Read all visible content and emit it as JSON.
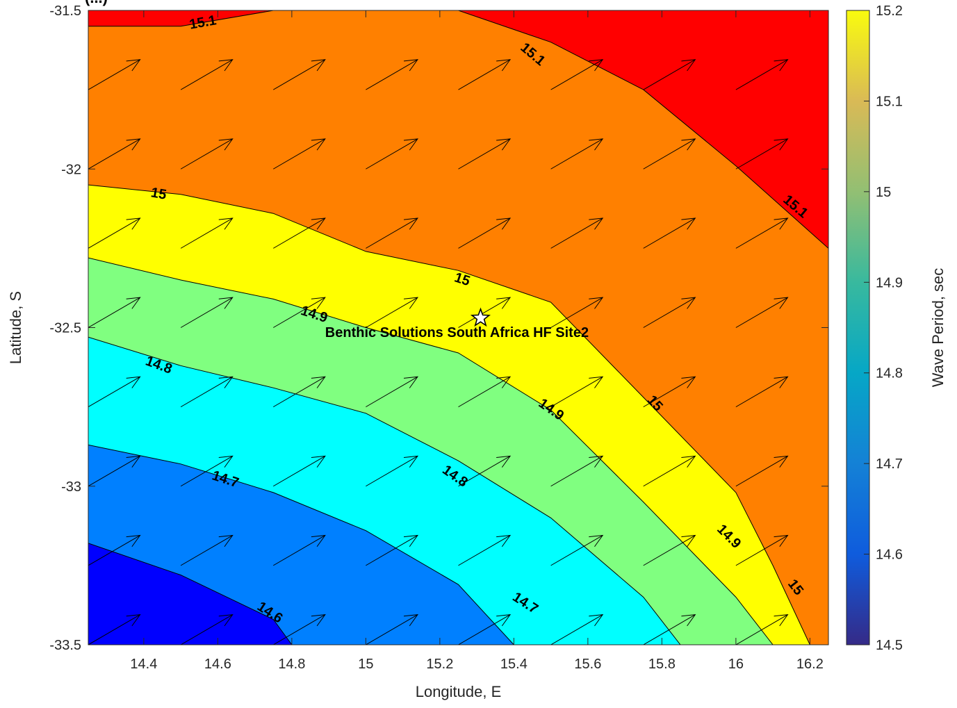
{
  "chart_data": {
    "type": "filled-contour",
    "title_fragment": "(...)",
    "xlabel": "Longitude, E",
    "ylabel": "Latitude, S",
    "colorbar_label": "Wave Period, sec",
    "xlim": [
      14.25,
      16.25
    ],
    "ylim": [
      -33.5,
      -31.5
    ],
    "x_ticks": [
      14.4,
      14.6,
      14.8,
      15,
      15.2,
      15.4,
      15.6,
      15.8,
      16,
      16.2
    ],
    "x_tick_labels": [
      "14.4",
      "14.6",
      "14.8",
      "15",
      "15.2",
      "15.4",
      "15.6",
      "15.8",
      "16",
      "16.2"
    ],
    "y_ticks": [
      -31.5,
      -32,
      -32.5,
      -33,
      -33.5
    ],
    "y_tick_labels": [
      "-31.5",
      "-32",
      "-32.5",
      "-33",
      "-33.5"
    ],
    "colorbar_range": [
      14.5,
      15.2
    ],
    "colorbar_ticks": [
      14.5,
      14.6,
      14.7,
      14.8,
      14.9,
      15,
      15.1,
      15.2
    ],
    "colorbar_tick_labels": [
      "14.5",
      "14.6",
      "14.7",
      "14.8",
      "14.9",
      "15",
      "15.1",
      "15.2"
    ],
    "contour_levels": [
      14.6,
      14.7,
      14.8,
      14.9,
      15.0,
      15.1
    ],
    "bands": [
      {
        "range": [
          14.5,
          14.6
        ],
        "color": "#0000FF"
      },
      {
        "range": [
          14.6,
          14.7
        ],
        "color": "#0080FF"
      },
      {
        "range": [
          14.7,
          14.8
        ],
        "color": "#00FFFF"
      },
      {
        "range": [
          14.8,
          14.9
        ],
        "color": "#80FF80"
      },
      {
        "range": [
          14.9,
          15.0
        ],
        "color": "#FFFF00"
      },
      {
        "range": [
          15.0,
          15.1
        ],
        "color": "#FF8000"
      },
      {
        "range": [
          15.1,
          15.2
        ],
        "color": "#FF0000"
      }
    ],
    "contour_lines": [
      {
        "level": 14.6,
        "points": [
          [
            14.25,
            -33.18
          ],
          [
            14.5,
            -33.28
          ],
          [
            14.75,
            -33.42
          ],
          [
            14.8,
            -33.5
          ]
        ]
      },
      {
        "level": 14.7,
        "points": [
          [
            14.25,
            -32.87
          ],
          [
            14.5,
            -32.93
          ],
          [
            14.75,
            -33.02
          ],
          [
            15.0,
            -33.14
          ],
          [
            15.25,
            -33.31
          ],
          [
            15.4,
            -33.5
          ]
        ]
      },
      {
        "level": 14.8,
        "points": [
          [
            14.25,
            -32.53
          ],
          [
            14.5,
            -32.62
          ],
          [
            14.75,
            -32.69
          ],
          [
            15.0,
            -32.77
          ],
          [
            15.25,
            -32.92
          ],
          [
            15.5,
            -33.1
          ],
          [
            15.75,
            -33.35
          ],
          [
            15.85,
            -33.5
          ]
        ]
      },
      {
        "level": 14.9,
        "points": [
          [
            14.25,
            -32.28
          ],
          [
            14.5,
            -32.35
          ],
          [
            14.75,
            -32.41
          ],
          [
            15.0,
            -32.5
          ],
          [
            15.25,
            -32.58
          ],
          [
            15.5,
            -32.76
          ],
          [
            15.75,
            -33.05
          ],
          [
            16.0,
            -33.35
          ],
          [
            16.1,
            -33.5
          ]
        ]
      },
      {
        "level": 15.0,
        "points": [
          [
            14.25,
            -32.05
          ],
          [
            14.5,
            -32.08
          ],
          [
            14.75,
            -32.14
          ],
          [
            15.0,
            -32.26
          ],
          [
            15.25,
            -32.32
          ],
          [
            15.5,
            -32.42
          ],
          [
            15.75,
            -32.72
          ],
          [
            16.0,
            -33.02
          ],
          [
            16.1,
            -33.25
          ],
          [
            16.2,
            -33.5
          ]
        ]
      },
      {
        "level": 15.1,
        "points": [
          [
            14.25,
            -31.55
          ],
          [
            14.5,
            -31.55
          ],
          [
            14.75,
            -31.5
          ],
          [
            15.25,
            -31.5
          ],
          [
            15.5,
            -31.6
          ],
          [
            15.75,
            -31.75
          ],
          [
            16.0,
            -31.99
          ],
          [
            16.25,
            -32.25
          ]
        ]
      }
    ],
    "contour_labels": [
      {
        "text": "15.1",
        "lon": 14.56,
        "lat": -31.54,
        "angle": -10
      },
      {
        "text": "15.1",
        "lon": 15.45,
        "lat": -31.64,
        "angle": 40
      },
      {
        "text": "15.1",
        "lon": 16.16,
        "lat": -32.12,
        "angle": 40
      },
      {
        "text": "15",
        "lon": 14.44,
        "lat": -32.08,
        "angle": 10
      },
      {
        "text": "15",
        "lon": 15.26,
        "lat": -32.35,
        "angle": 18
      },
      {
        "text": "15",
        "lon": 15.78,
        "lat": -32.74,
        "angle": 48
      },
      {
        "text": "15",
        "lon": 16.16,
        "lat": -33.32,
        "angle": 52
      },
      {
        "text": "14.9",
        "lon": 14.86,
        "lat": -32.46,
        "angle": 18
      },
      {
        "text": "14.9",
        "lon": 15.5,
        "lat": -32.76,
        "angle": 35
      },
      {
        "text": "14.9",
        "lon": 15.98,
        "lat": -33.16,
        "angle": 45
      },
      {
        "text": "14.8",
        "lon": 14.44,
        "lat": -32.62,
        "angle": 20
      },
      {
        "text": "14.8",
        "lon": 15.24,
        "lat": -32.97,
        "angle": 35
      },
      {
        "text": "14.7",
        "lon": 14.62,
        "lat": -32.98,
        "angle": 18
      },
      {
        "text": "14.7",
        "lon": 15.43,
        "lat": -33.37,
        "angle": 33
      },
      {
        "text": "14.6",
        "lon": 14.74,
        "lat": -33.4,
        "angle": 33
      }
    ],
    "vector_field": {
      "lons": [
        14.25,
        14.5,
        14.75,
        15.0,
        15.25,
        15.5,
        15.75,
        16.0
      ],
      "lats": [
        -31.5,
        -31.75,
        -32.0,
        -32.25,
        -32.5,
        -32.75,
        -33.0,
        -33.25,
        -33.5
      ],
      "u": 0.14,
      "v": 0.095
    },
    "site_marker": {
      "lon": 15.31,
      "lat": -32.47,
      "symbol": "star",
      "label": "Benthic Solutions South Africa HF Site2"
    }
  }
}
